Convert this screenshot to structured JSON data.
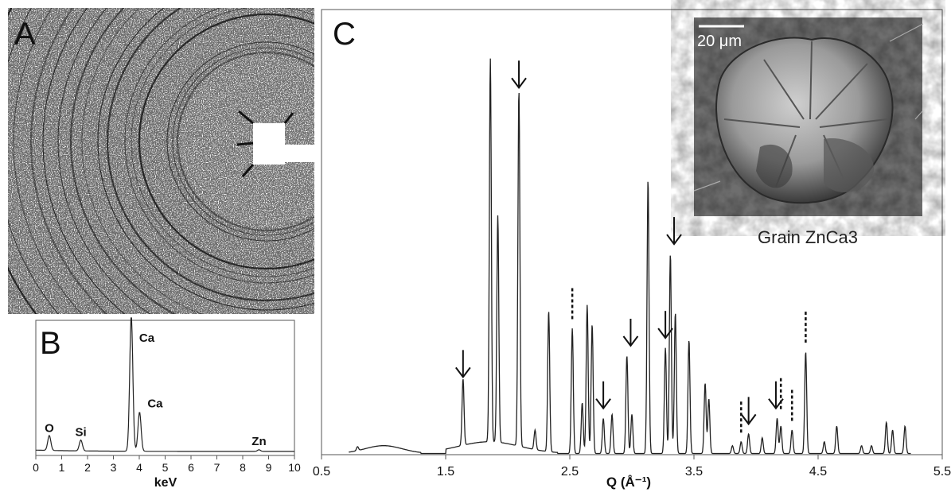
{
  "panel_labels": {
    "a": "A",
    "b": "B",
    "c": "C"
  },
  "inset": {
    "scale_bar": "20 μm",
    "caption": "Grain ZnCa3"
  },
  "chart_data": [
    {
      "panel": "A",
      "type": "other"
    },
    {
      "panel": "B",
      "type": "line",
      "xlabel": "keV",
      "ylabel": "",
      "xlim": [
        0,
        10
      ],
      "x_ticks": [
        "0",
        "1",
        "2",
        "3",
        "4",
        "5",
        "6",
        "7",
        "8",
        "9",
        "10"
      ],
      "annotations": [
        {
          "text": "O",
          "x": 0.52
        },
        {
          "text": "Si",
          "x": 1.74
        },
        {
          "text": "Ca",
          "x": 3.69
        },
        {
          "text": "Ca",
          "x": 4.01
        },
        {
          "text": "Zn",
          "x": 8.63
        }
      ],
      "peaks": [
        {
          "x": 0.52,
          "y": 0.11
        },
        {
          "x": 1.74,
          "y": 0.08
        },
        {
          "x": 3.69,
          "y": 1.0
        },
        {
          "x": 4.01,
          "y": 0.29
        },
        {
          "x": 8.63,
          "y": 0.012
        }
      ]
    },
    {
      "panel": "C",
      "type": "line",
      "xlabel": "Q (Å⁻¹)",
      "ylabel": "",
      "xlim": [
        0.5,
        5.5
      ],
      "x_ticks": [
        "0.5",
        "1.5",
        "2.5",
        "3.5",
        "4.5",
        "5.5"
      ],
      "peaks": [
        {
          "x": 0.79,
          "y": 0.01
        },
        {
          "x": 1.64,
          "y": 0.17
        },
        {
          "x": 1.86,
          "y": 0.98
        },
        {
          "x": 1.92,
          "y": 0.58
        },
        {
          "x": 2.09,
          "y": 0.91
        },
        {
          "x": 2.22,
          "y": 0.05
        },
        {
          "x": 2.33,
          "y": 0.36
        },
        {
          "x": 2.52,
          "y": 0.32
        },
        {
          "x": 2.6,
          "y": 0.13
        },
        {
          "x": 2.64,
          "y": 0.38
        },
        {
          "x": 2.68,
          "y": 0.33
        },
        {
          "x": 2.77,
          "y": 0.09
        },
        {
          "x": 2.84,
          "y": 0.1
        },
        {
          "x": 2.96,
          "y": 0.25
        },
        {
          "x": 3.0,
          "y": 0.1
        },
        {
          "x": 3.13,
          "y": 0.7
        },
        {
          "x": 3.27,
          "y": 0.27
        },
        {
          "x": 3.31,
          "y": 0.51
        },
        {
          "x": 3.35,
          "y": 0.36
        },
        {
          "x": 3.46,
          "y": 0.29
        },
        {
          "x": 3.59,
          "y": 0.18
        },
        {
          "x": 3.62,
          "y": 0.14
        },
        {
          "x": 3.81,
          "y": 0.02
        },
        {
          "x": 3.88,
          "y": 0.03
        },
        {
          "x": 3.94,
          "y": 0.05
        },
        {
          "x": 4.05,
          "y": 0.04
        },
        {
          "x": 4.17,
          "y": 0.09
        },
        {
          "x": 4.2,
          "y": 0.07
        },
        {
          "x": 4.29,
          "y": 0.06
        },
        {
          "x": 4.4,
          "y": 0.26
        },
        {
          "x": 4.55,
          "y": 0.03
        },
        {
          "x": 4.65,
          "y": 0.07
        },
        {
          "x": 4.85,
          "y": 0.02
        },
        {
          "x": 4.93,
          "y": 0.02
        },
        {
          "x": 5.05,
          "y": 0.08
        },
        {
          "x": 5.1,
          "y": 0.06
        },
        {
          "x": 5.2,
          "y": 0.07
        }
      ],
      "arrows": [
        1.64,
        2.09,
        2.77,
        2.99,
        3.27,
        3.34,
        3.94,
        4.16
      ],
      "dashed_markers": [
        2.52,
        3.88,
        4.2,
        4.29,
        4.4
      ]
    }
  ]
}
